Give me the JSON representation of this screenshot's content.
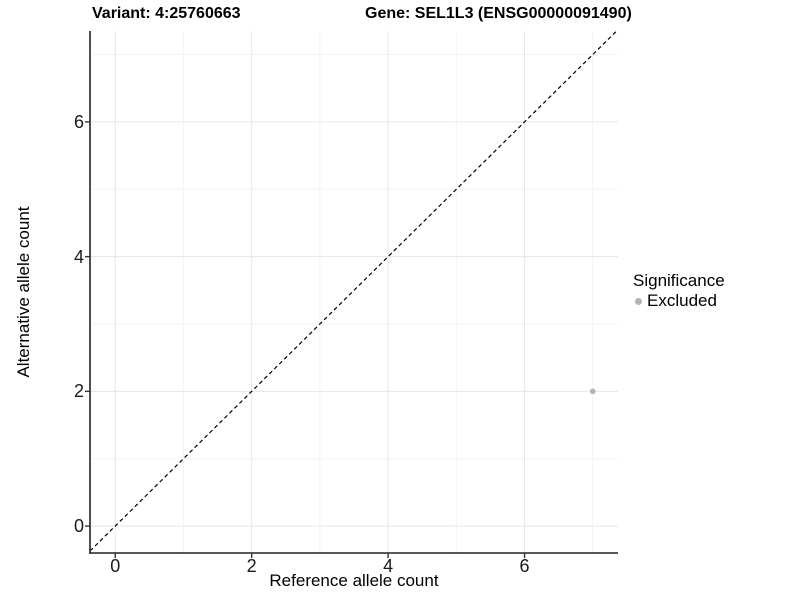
{
  "titles": {
    "variant": "Variant: 4:25760663",
    "gene": "Gene: SEL1L3 (ENSG00000091490)"
  },
  "chart_data": {
    "type": "scatter",
    "title_left": "Variant: 4:25760663",
    "title_right": "Gene: SEL1L3 (ENSG00000091490)",
    "xlabel": "Reference allele count",
    "ylabel": "Alternative allele count",
    "xlim": [
      -0.37,
      7.37
    ],
    "ylim": [
      -0.4,
      7.35
    ],
    "x_major_ticks": [
      0,
      2,
      4,
      6
    ],
    "y_major_ticks": [
      0,
      2,
      4,
      6
    ],
    "x_minor_ticks": [
      1,
      3,
      5,
      7
    ],
    "y_minor_ticks": [
      1,
      3,
      5,
      7
    ],
    "grid": true,
    "identity_line": {
      "slope": 1,
      "intercept": 0,
      "style": "dashed",
      "color": "#000000"
    },
    "series": [
      {
        "name": "Excluded",
        "color": "#b4b4b4",
        "points": [
          {
            "x": 7,
            "y": 2
          }
        ]
      }
    ],
    "legend": {
      "title": "Significance",
      "position": "right",
      "entries": [
        {
          "label": "Excluded",
          "color": "#b4b4b4"
        }
      ]
    },
    "style": {
      "grid_major_color": "#e7e7e7",
      "grid_minor_color": "#f3f3f3",
      "axis_line_color": "#222222",
      "tick_color": "#333333",
      "panel_background": "#ffffff"
    }
  }
}
